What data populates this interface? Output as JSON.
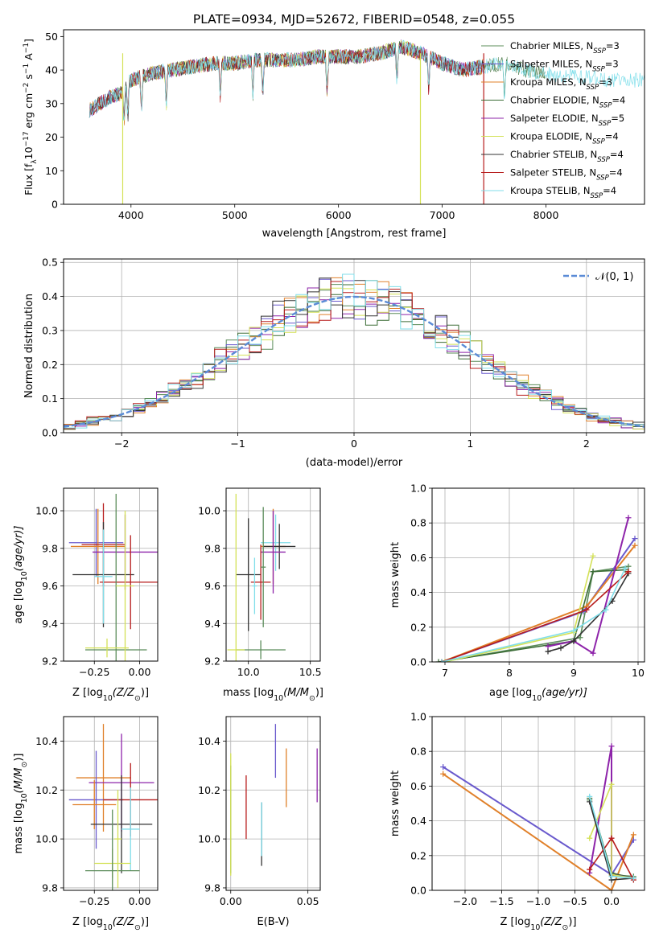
{
  "figure_title": "PLATE=0934, MJD=52672, FIBERID=0548, z=0.055",
  "series_styles": [
    {
      "name": "Chabrier MILES",
      "nssp": "3",
      "color": "#5b8c5a"
    },
    {
      "name": "Salpeter MILES",
      "nssp": "3",
      "color": "#6a5acd"
    },
    {
      "name": "Kroupa MILES",
      "nssp": "3",
      "color": "#e0802a"
    },
    {
      "name": "Chabrier ELODIE",
      "nssp": "4",
      "color": "#3a6b35"
    },
    {
      "name": "Salpeter ELODIE",
      "nssp": "5",
      "color": "#8e24aa"
    },
    {
      "name": "Kroupa ELODIE",
      "nssp": "4",
      "color": "#d4e157"
    },
    {
      "name": "Chabrier STELIB",
      "nssp": "4",
      "color": "#333333"
    },
    {
      "name": "Salpeter STELIB",
      "nssp": "4",
      "color": "#b71c1c"
    },
    {
      "name": "Kroupa STELIB",
      "nssp": "4",
      "color": "#80deea"
    }
  ],
  "chart_data": [
    {
      "id": "spectrum",
      "type": "line",
      "xlabel": "wavelength [Angstrom, rest frame]",
      "ylabel_parts": {
        "a": "Flux [f",
        "b": "λ",
        "c": "10",
        "d": "−17",
        "e": " erg cm",
        "f": "−2",
        "g": " s",
        "h": "−1",
        "i": " A",
        "j": "−1",
        "k": "]"
      },
      "xlim": [
        3350,
        8950
      ],
      "ylim": [
        0,
        52
      ],
      "xticks": [
        4000,
        5000,
        6000,
        7000,
        8000
      ],
      "yticks": [
        0,
        10,
        20,
        30,
        40,
        50
      ],
      "grid": false,
      "legend_position": "upper-right",
      "nssp_label": "N",
      "nssp_sub": "SSP",
      "continuum": {
        "x": [
          3600,
          3700,
          3800,
          3900,
          4000,
          4100,
          4200,
          4400,
          4600,
          4800,
          5000,
          5200,
          5400,
          5600,
          5800,
          6000,
          6200,
          6400,
          6600,
          6800,
          7000,
          7200,
          7400,
          7600,
          7800,
          8000,
          8200,
          8400,
          8600,
          8800,
          8950
        ],
        "y": [
          28,
          30,
          32,
          33,
          37,
          38,
          39,
          40,
          41,
          42,
          42,
          43,
          43,
          43,
          44,
          44,
          44,
          45,
          47,
          45,
          42,
          40,
          41,
          42,
          40,
          39,
          38,
          38,
          37,
          37,
          37
        ]
      }
    },
    {
      "id": "residuals",
      "type": "step-histogram",
      "xlabel": "(data-model)/error",
      "ylabel": "Normed distribution",
      "xlim": [
        -2.5,
        2.5
      ],
      "ylim": [
        0,
        0.51
      ],
      "xticks": [
        -2,
        -1,
        0,
        1,
        2
      ],
      "yticks": [
        0.0,
        0.1,
        0.2,
        0.3,
        0.4,
        0.5
      ],
      "grid": true,
      "legend_position": "upper-right",
      "gaussian_label": "𝒩(0, 1)",
      "gaussian_color": "#5b8bd6",
      "bin_width": 0.1,
      "bin_start": -2.5
    },
    {
      "id": "age-vs-Z",
      "type": "errorbar",
      "xlabel_parts": {
        "a": "Z [log",
        "b": "10",
        "c": "(Z/Z",
        "d": "⊙",
        "e": ")]"
      },
      "ylabel_parts": {
        "a": "age  [log",
        "b": "10",
        "c": "(age/yr)]"
      },
      "xlim": [
        -0.42,
        0.1
      ],
      "ylim": [
        9.2,
        10.12
      ],
      "xticks": [
        -0.25,
        0.0
      ],
      "xtick_labels": [
        "−0.25",
        "0.00"
      ],
      "yticks": [
        9.2,
        9.4,
        9.6,
        9.8,
        10.0
      ],
      "grid": true,
      "points": [
        {
          "x": -0.24,
          "y": 9.83,
          "xerr": 0.15,
          "yerr": 0.18,
          "series": 1
        },
        {
          "x": -0.23,
          "y": 9.81,
          "xerr": 0.15,
          "yerr": 0.2,
          "series": 2
        },
        {
          "x": -0.2,
          "y": 9.82,
          "xerr": 0.12,
          "yerr": 0.22,
          "series": 7
        },
        {
          "x": -0.08,
          "y": 9.78,
          "xerr": 0.18,
          "yerr": 0.2,
          "series": 4
        },
        {
          "x": -0.2,
          "y": 9.66,
          "xerr": 0.17,
          "yerr": 0.28,
          "series": 6
        },
        {
          "x": -0.05,
          "y": 9.62,
          "xerr": 0.17,
          "yerr": 0.25,
          "series": 7
        },
        {
          "x": -0.13,
          "y": 9.26,
          "xerr": 0.17,
          "yerr": 0.83,
          "series": 0
        },
        {
          "x": -0.18,
          "y": 9.27,
          "xerr": 0.12,
          "yerr": 0.05,
          "series": 5
        },
        {
          "x": -0.08,
          "y": 9.6,
          "xerr": 0.05,
          "yerr": 0.4,
          "series": 5
        },
        {
          "x": -0.2,
          "y": 9.65,
          "xerr": 0.05,
          "yerr": 0.25,
          "series": 8
        }
      ]
    },
    {
      "id": "age-vs-mass",
      "type": "errorbar",
      "xlabel_parts": {
        "a": "mass [log",
        "b": "10",
        "c": "(M/M",
        "d": "⊙",
        "e": ")]"
      },
      "xlim": [
        9.82,
        10.58
      ],
      "ylim": [
        9.2,
        10.12
      ],
      "xticks": [
        10.0,
        10.5
      ],
      "xtick_labels": [
        "10.0",
        "10.5"
      ],
      "yticks": [
        9.2,
        9.4,
        9.6,
        9.8,
        10.0
      ],
      "grid": true,
      "points": [
        {
          "x": 10.22,
          "y": 9.83,
          "xerr": 0.12,
          "yerr": 0.15,
          "series": 8
        },
        {
          "x": 10.2,
          "y": 9.81,
          "xerr": 0.1,
          "yerr": 0.2,
          "series": 2
        },
        {
          "x": 10.25,
          "y": 9.81,
          "xerr": 0.13,
          "yerr": 0.12,
          "series": 6
        },
        {
          "x": 10.2,
          "y": 9.78,
          "xerr": 0.1,
          "yerr": 0.22,
          "series": 4
        },
        {
          "x": 10.0,
          "y": 9.66,
          "xerr": 0.1,
          "yerr": 0.3,
          "series": 6
        },
        {
          "x": 10.1,
          "y": 9.62,
          "xerr": 0.08,
          "yerr": 0.2,
          "series": 7
        },
        {
          "x": 10.1,
          "y": 9.26,
          "xerr": 0.2,
          "yerr": 0.05,
          "series": 0
        },
        {
          "x": 9.9,
          "y": 9.26,
          "xerr": 0.07,
          "yerr": 0.83,
          "series": 5
        },
        {
          "x": 10.05,
          "y": 9.6,
          "xerr": 0.02,
          "yerr": 0.15,
          "series": 8
        },
        {
          "x": 10.12,
          "y": 9.7,
          "xerr": 0.02,
          "yerr": 0.32,
          "series": 0
        }
      ]
    },
    {
      "id": "mass-weight-vs-age",
      "type": "line",
      "xlabel_parts": {
        "a": "age  [log",
        "b": "10",
        "c": "(age/yr)]"
      },
      "ylabel": "mass weight",
      "xlim": [
        6.8,
        10.1
      ],
      "ylim": [
        0,
        1
      ],
      "xticks": [
        7,
        8,
        9,
        10
      ],
      "yticks": [
        0.0,
        0.2,
        0.4,
        0.6,
        0.8,
        1.0
      ],
      "grid": true,
      "series": [
        {
          "series": 0,
          "x": [
            6.95,
            9.1,
            9.3,
            9.85
          ],
          "y": [
            0.0,
            0.14,
            0.52,
            0.55
          ]
        },
        {
          "series": 1,
          "x": [
            6.95,
            9.15,
            9.95
          ],
          "y": [
            0.0,
            0.29,
            0.71
          ]
        },
        {
          "series": 2,
          "x": [
            6.95,
            9.2,
            9.95
          ],
          "y": [
            0.0,
            0.32,
            0.67
          ]
        },
        {
          "series": 3,
          "x": [
            6.9,
            9.0,
            9.3,
            9.8
          ],
          "y": [
            0.0,
            0.12,
            0.52,
            0.53
          ]
        },
        {
          "series": 4,
          "x": [
            8.6,
            9.0,
            9.3,
            9.85
          ],
          "y": [
            0.09,
            0.12,
            0.05,
            0.83
          ]
        },
        {
          "series": 5,
          "x": [
            7.0,
            9.0,
            9.3
          ],
          "y": [
            0.0,
            0.17,
            0.61
          ]
        },
        {
          "series": 6,
          "x": [
            8.6,
            8.8,
            9.0,
            9.6,
            9.85
          ],
          "y": [
            0.06,
            0.08,
            0.12,
            0.35,
            0.51
          ]
        },
        {
          "series": 7,
          "x": [
            6.95,
            9.2,
            9.85
          ],
          "y": [
            0.0,
            0.3,
            0.52
          ]
        },
        {
          "series": 8,
          "x": [
            6.95,
            9.0,
            9.5,
            9.8
          ],
          "y": [
            0.0,
            0.18,
            0.3,
            0.54
          ]
        }
      ]
    },
    {
      "id": "mass-vs-Z",
      "type": "errorbar",
      "xlabel_parts": {
        "a": "Z [log",
        "b": "10",
        "c": "(Z/Z",
        "d": "⊙",
        "e": ")]"
      },
      "ylabel_parts": {
        "a": "mass [log",
        "b": "10",
        "c": "(M/M",
        "d": "⊙",
        "e": ")]"
      },
      "xlim": [
        -0.42,
        0.1
      ],
      "ylim": [
        9.79,
        10.5
      ],
      "xticks": [
        -0.25,
        0.0
      ],
      "xtick_labels": [
        "−0.25",
        "0.00"
      ],
      "yticks": [
        9.8,
        10.0,
        10.2,
        10.4
      ],
      "grid": true,
      "points": [
        {
          "x": -0.2,
          "y": 10.25,
          "xerr": 0.15,
          "yerr": 0.22,
          "series": 2
        },
        {
          "x": -0.1,
          "y": 10.23,
          "xerr": 0.18,
          "yerr": 0.2,
          "series": 4
        },
        {
          "x": -0.24,
          "y": 10.16,
          "xerr": 0.15,
          "yerr": 0.2,
          "series": 1
        },
        {
          "x": -0.05,
          "y": 10.16,
          "xerr": 0.15,
          "yerr": 0.15,
          "series": 7
        },
        {
          "x": -0.25,
          "y": 10.14,
          "xerr": 0.12,
          "yerr": 0.1,
          "series": 2
        },
        {
          "x": -0.1,
          "y": 10.06,
          "xerr": 0.17,
          "yerr": 0.2,
          "series": 6
        },
        {
          "x": -0.05,
          "y": 10.04,
          "xerr": 0.05,
          "yerr": 0.17,
          "series": 8
        },
        {
          "x": -0.15,
          "y": 9.9,
          "xerr": 0.1,
          "yerr": 0.06,
          "series": 5
        },
        {
          "x": -0.15,
          "y": 9.87,
          "xerr": 0.15,
          "yerr": 0.25,
          "series": 0
        },
        {
          "x": -0.12,
          "y": 10.0,
          "xerr": 0.02,
          "yerr": 0.2,
          "series": 5
        }
      ]
    },
    {
      "id": "mass-vs-ebv",
      "type": "errorbar",
      "xlabel": "E(B-V)",
      "xlim": [
        -0.003,
        0.058
      ],
      "ylim": [
        9.79,
        10.5
      ],
      "xticks": [
        0.0,
        0.05
      ],
      "xtick_labels": [
        "0.00",
        "0.05"
      ],
      "yticks": [
        9.8,
        10.0,
        10.2,
        10.4
      ],
      "grid": true,
      "points": [
        {
          "x": 0.0,
          "y": 10.08,
          "xerr": 0,
          "yerr": 0.22,
          "series": 0
        },
        {
          "x": 0.0,
          "y": 10.1,
          "xerr": 0,
          "yerr": 0.25,
          "series": 5
        },
        {
          "x": 0.01,
          "y": 10.13,
          "xerr": 0,
          "yerr": 0.13,
          "series": 7
        },
        {
          "x": 0.02,
          "y": 10.02,
          "xerr": 0,
          "yerr": 0.13,
          "series": 6
        },
        {
          "x": 0.02,
          "y": 10.04,
          "xerr": 0,
          "yerr": 0.11,
          "series": 8
        },
        {
          "x": 0.029,
          "y": 10.36,
          "xerr": 0,
          "yerr": 0.11,
          "series": 1
        },
        {
          "x": 0.036,
          "y": 10.25,
          "xerr": 0,
          "yerr": 0.12,
          "series": 2
        },
        {
          "x": 0.056,
          "y": 10.26,
          "xerr": 0,
          "yerr": 0.11,
          "series": 4
        }
      ]
    },
    {
      "id": "mass-weight-vs-Z",
      "type": "line",
      "xlabel_parts": {
        "a": "Z [log",
        "b": "10",
        "c": "(Z/Z",
        "d": "⊙",
        "e": ")]"
      },
      "ylabel": "mass weight",
      "xlim": [
        -2.45,
        0.45
      ],
      "ylim": [
        0,
        1
      ],
      "xticks": [
        -2.0,
        -1.5,
        -1.0,
        -0.5,
        0.0
      ],
      "xtick_labels": [
        "−2.0",
        "−1.5",
        "−1.0",
        "−0.5",
        "0.0"
      ],
      "yticks": [
        0.0,
        0.2,
        0.4,
        0.6,
        0.8,
        1.0
      ],
      "grid": true,
      "series": [
        {
          "series": 1,
          "x": [
            -2.3,
            0.0,
            0.3
          ],
          "y": [
            0.71,
            0.09,
            0.29
          ]
        },
        {
          "series": 2,
          "x": [
            -2.3,
            0.0,
            0.3
          ],
          "y": [
            0.67,
            0.0,
            0.32
          ]
        },
        {
          "series": 0,
          "x": [
            -0.3,
            0.0,
            0.3
          ],
          "y": [
            0.52,
            0.09,
            0.08
          ]
        },
        {
          "series": 3,
          "x": [
            -0.3,
            0.0,
            0.3
          ],
          "y": [
            0.53,
            0.1,
            0.07
          ]
        },
        {
          "series": 4,
          "x": [
            -0.3,
            0.0,
            0.0,
            0.3
          ],
          "y": [
            0.1,
            0.83,
            0.09,
            0.07
          ]
        },
        {
          "series": 5,
          "x": [
            -0.3,
            0.0,
            0.0,
            0.3
          ],
          "y": [
            0.3,
            0.61,
            0.09,
            0.07
          ]
        },
        {
          "series": 6,
          "x": [
            -0.3,
            0.0,
            0.3
          ],
          "y": [
            0.51,
            0.06,
            0.07
          ]
        },
        {
          "series": 7,
          "x": [
            -0.3,
            0.0,
            0.3
          ],
          "y": [
            0.12,
            0.3,
            0.06
          ]
        },
        {
          "series": 8,
          "x": [
            -0.3,
            0.0,
            0.3
          ],
          "y": [
            0.54,
            0.08,
            0.07
          ]
        }
      ]
    }
  ]
}
